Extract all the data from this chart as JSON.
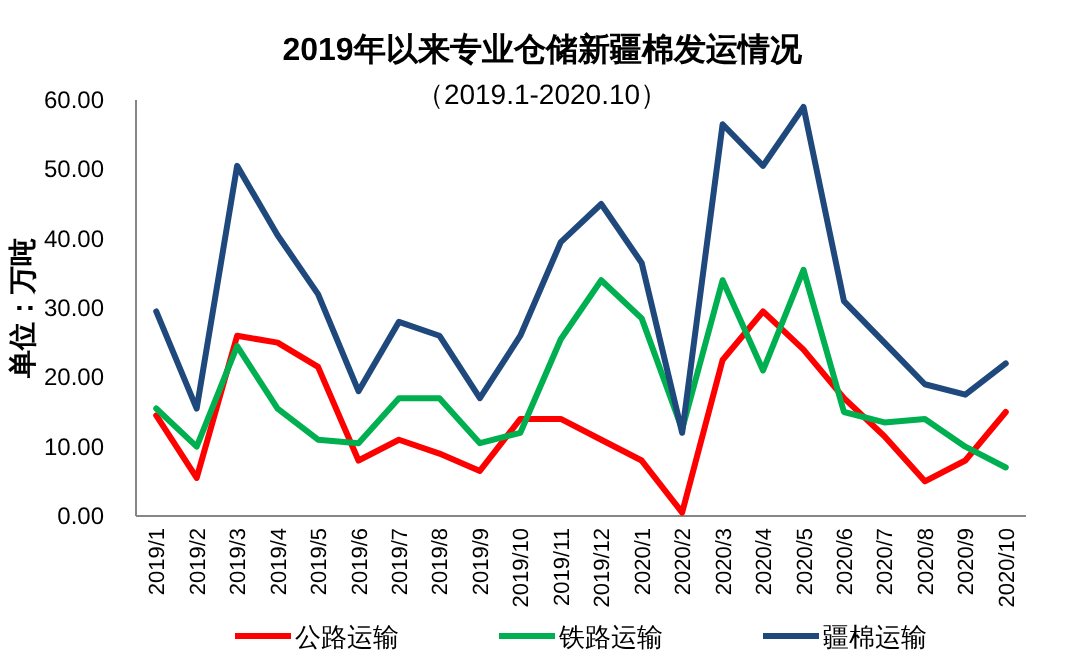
{
  "chart_data": {
    "type": "line",
    "title": "2019年以来专业仓储新疆棉发运情况",
    "subtitle": "（2019.1-2020.10）",
    "ylabel": "单位：万吨",
    "categories": [
      "2019/1",
      "2019/2",
      "2019/3",
      "2019/4",
      "2019/5",
      "2019/6",
      "2019/7",
      "2019/8",
      "2019/9",
      "2019/10",
      "2019/11",
      "2019/12",
      "2020/1",
      "2020/2",
      "2020/3",
      "2020/4",
      "2020/5",
      "2020/6",
      "2020/7",
      "2020/8",
      "2020/9",
      "2020/10"
    ],
    "series": [
      {
        "name": "公路运输",
        "color": "#ff0000",
        "values": [
          14.5,
          5.5,
          26,
          25,
          21.5,
          8,
          11,
          9,
          6.5,
          14,
          14,
          11,
          8,
          0.5,
          22.5,
          29.5,
          24,
          17,
          11.5,
          5,
          8,
          15
        ]
      },
      {
        "name": "铁路运输",
        "color": "#00b050",
        "values": [
          15.5,
          10,
          24.5,
          15.5,
          11,
          10.5,
          17,
          17,
          10.5,
          12,
          25.5,
          34,
          28.5,
          12.5,
          34,
          21,
          35.5,
          15,
          13.5,
          14,
          10,
          7
        ]
      },
      {
        "name": "疆棉运输",
        "color": "#1f497d",
        "values": [
          29.5,
          15.5,
          50.5,
          40.5,
          32,
          18,
          28,
          26,
          17,
          26,
          39.5,
          45,
          36.5,
          12,
          56.5,
          50.5,
          59,
          31,
          25,
          19,
          17.5,
          22
        ]
      }
    ],
    "ylim": [
      0,
      60
    ],
    "yticks": [
      {
        "value": 0,
        "label": "0.00"
      },
      {
        "value": 10,
        "label": "10.00"
      },
      {
        "value": 20,
        "label": "20.00"
      },
      {
        "value": 30,
        "label": "30.00"
      },
      {
        "value": 40,
        "label": "40.00"
      },
      {
        "value": 50,
        "label": "50.00"
      },
      {
        "value": 60,
        "label": "60.00"
      }
    ],
    "grid": false,
    "legend": "bottom",
    "marker": "none",
    "line_style": "solid"
  }
}
